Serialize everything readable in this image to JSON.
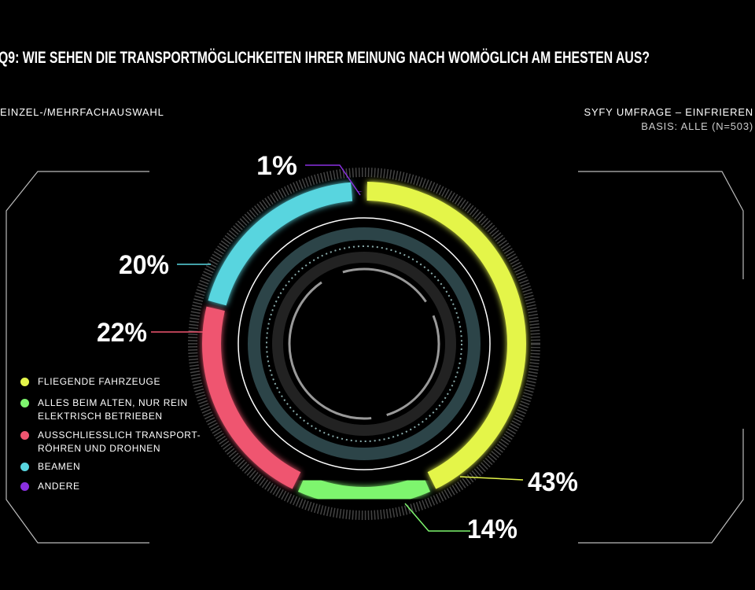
{
  "chart_data": {
    "type": "donut",
    "title": "Q9: WIE SEHEN DIE TRANSPORTMÖGLICHKEITEN IHRER MEINUNG NACH WOMÖGLICH AM EHESTEN AUS?",
    "subtitle": "EINZEL-/MEHRFACHAUSWAHL",
    "source": "SYFY UMFRAGE – EINFRIEREN",
    "base": "BASIS: ALLE (N=503)",
    "categories": [
      "FLIEGENDE FAHRZEUGE",
      "ALLES BEIM ALTEN, NUR REIN ELEKTRISCH BETRIEBEN",
      "AUSSCHLIESSLICH TRANSPORT-RÖHREN UND DROHNEN",
      "BEAMEN",
      "ANDERE"
    ],
    "values": [
      43,
      14,
      22,
      20,
      1
    ],
    "value_labels": [
      "43%",
      "14%",
      "22%",
      "20%",
      "1%"
    ],
    "colors": [
      "#e4f54a",
      "#7ef56e",
      "#ef5570",
      "#58d5df",
      "#8a30e0"
    ]
  }
}
